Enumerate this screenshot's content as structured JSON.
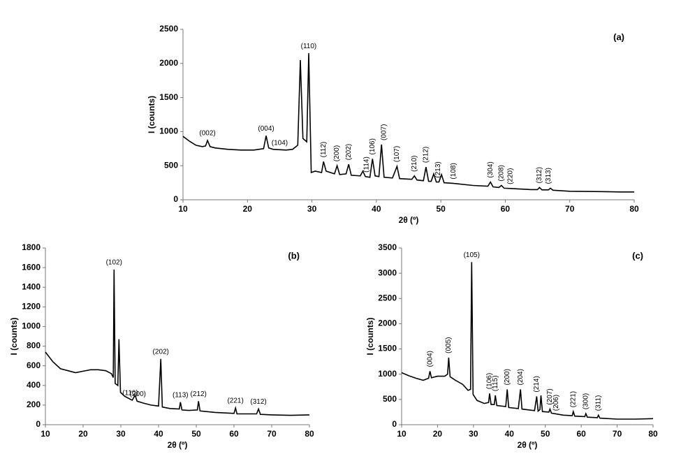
{
  "chart_data": [
    {
      "type": "line",
      "panel": "(a)",
      "x_label": "2θ (º)",
      "y_label": "I (counts)",
      "xlim": [
        10,
        80
      ],
      "xticks": [
        10,
        20,
        30,
        40,
        50,
        60,
        70,
        80
      ],
      "ylim": [
        0,
        2500
      ],
      "yticks": [
        0,
        500,
        1000,
        1500,
        2000,
        2500
      ],
      "color": "#000000",
      "x": [
        10,
        11,
        12,
        13,
        13.5,
        13.8,
        14.2,
        15,
        17,
        19,
        21,
        22.5,
        22.9,
        23.3,
        24,
        26,
        27,
        27.8,
        28.2,
        28.6,
        29.2,
        29.5,
        29.9,
        30.5,
        31.5,
        31.8,
        32.2,
        33.5,
        33.9,
        34.3,
        35.3,
        35.7,
        36.1,
        37.5,
        37.9,
        38.3,
        39,
        39.4,
        39.8,
        40.4,
        40.8,
        41.2,
        42.5,
        43.2,
        43.6,
        45.5,
        45.9,
        46.3,
        47.3,
        47.7,
        48.1,
        48.5,
        48.9,
        49.3,
        49.7,
        50.1,
        50.5,
        52,
        55,
        57.3,
        57.7,
        58.1,
        59,
        59.4,
        59.8,
        61,
        62,
        64,
        65,
        65.3,
        65.7,
        66.7,
        67,
        67.4,
        70,
        75,
        78,
        80
      ],
      "values": [
        930,
        860,
        800,
        780,
        790,
        870,
        780,
        760,
        740,
        730,
        730,
        750,
        940,
        760,
        740,
        730,
        740,
        800,
        2050,
        900,
        850,
        2150,
        400,
        420,
        400,
        560,
        420,
        380,
        500,
        370,
        380,
        520,
        360,
        350,
        420,
        340,
        330,
        600,
        350,
        340,
        810,
        330,
        320,
        490,
        310,
        300,
        350,
        290,
        280,
        480,
        270,
        270,
        380,
        260,
        260,
        370,
        250,
        240,
        210,
        200,
        260,
        190,
        180,
        210,
        170,
        165,
        160,
        150,
        150,
        180,
        145,
        145,
        170,
        140,
        125,
        120,
        115,
        115
      ],
      "annotations": [
        {
          "text": "(002)",
          "x": 13.8,
          "vertical": false
        },
        {
          "text": "(004)",
          "x": 22.9,
          "vertical": false
        },
        {
          "text": "(104)",
          "x": 25,
          "vertical": false
        },
        {
          "text": "(110)",
          "x": 29.5,
          "vertical": false
        },
        {
          "text": "(112)",
          "x": 31.8,
          "vertical": true
        },
        {
          "text": "(200)",
          "x": 33.9,
          "vertical": true
        },
        {
          "text": "(202)",
          "x": 35.7,
          "vertical": true
        },
        {
          "text": "(114)",
          "x": 38.5,
          "vertical": true
        },
        {
          "text": "(106)",
          "x": 39.4,
          "vertical": true
        },
        {
          "text": "(007)",
          "x": 41.2,
          "vertical": true
        },
        {
          "text": "(107)",
          "x": 43.2,
          "vertical": true
        },
        {
          "text": "(210)",
          "x": 45.9,
          "vertical": true
        },
        {
          "text": "(212)",
          "x": 47.7,
          "vertical": true
        },
        {
          "text": "(213)",
          "x": 49.6,
          "vertical": true
        },
        {
          "text": "(108)",
          "x": 52,
          "vertical": true
        },
        {
          "text": "(304)",
          "x": 57.7,
          "vertical": true
        },
        {
          "text": "(208)",
          "x": 59.4,
          "vertical": true
        },
        {
          "text": "(220)",
          "x": 60.8,
          "vertical": true
        },
        {
          "text": "(312)",
          "x": 65.3,
          "vertical": true
        },
        {
          "text": "(313)",
          "x": 66.7,
          "vertical": true
        }
      ]
    },
    {
      "type": "line",
      "panel": "(b)",
      "x_label": "2θ (º)",
      "y_label": "I (counts)",
      "xlim": [
        10,
        80
      ],
      "xticks": [
        10,
        20,
        30,
        40,
        50,
        60,
        70,
        80
      ],
      "ylim": [
        0,
        1800
      ],
      "yticks": [
        0,
        200,
        400,
        600,
        800,
        1000,
        1200,
        1400,
        1600,
        1800
      ],
      "color": "#000000",
      "x": [
        10,
        12,
        14,
        16,
        18,
        20,
        22,
        24,
        26,
        27.5,
        28,
        28.2,
        28.5,
        29.2,
        29.5,
        29.9,
        31,
        33,
        33.8,
        34.3,
        36,
        38,
        40,
        40.6,
        41,
        43,
        45.5,
        45.8,
        46.2,
        48,
        50.3,
        50.6,
        51,
        55,
        60,
        60.4,
        60.8,
        66,
        66.5,
        67,
        70,
        75,
        80
      ],
      "values": [
        740,
        640,
        570,
        550,
        530,
        545,
        560,
        560,
        550,
        520,
        480,
        1580,
        420,
        400,
        870,
        330,
        290,
        250,
        300,
        240,
        220,
        200,
        190,
        670,
        180,
        165,
        160,
        230,
        150,
        145,
        150,
        240,
        140,
        125,
        115,
        170,
        110,
        110,
        160,
        105,
        100,
        95,
        100
      ],
      "annotations": [
        {
          "text": "(102)",
          "x": 28.2,
          "vertical": false
        },
        {
          "text": "(110)",
          "x": 32.5,
          "vertical": false
        },
        {
          "text": "(200)",
          "x": 34.5,
          "vertical": false
        },
        {
          "text": "(202)",
          "x": 40.6,
          "vertical": false
        },
        {
          "text": "(113)",
          "x": 45.8,
          "vertical": false
        },
        {
          "text": "(212)",
          "x": 50.6,
          "vertical": false
        },
        {
          "text": "(221)",
          "x": 60.4,
          "vertical": false
        },
        {
          "text": "(312)",
          "x": 66.5,
          "vertical": false
        }
      ]
    },
    {
      "type": "line",
      "panel": "(c)",
      "x_label": "2θ (º)",
      "y_label": "I (counts)",
      "xlim": [
        10,
        80
      ],
      "xticks": [
        10,
        20,
        30,
        40,
        50,
        60,
        70,
        80
      ],
      "ylim": [
        0,
        3500
      ],
      "yticks": [
        0,
        500,
        1000,
        1500,
        2000,
        2500,
        3000,
        3500
      ],
      "color": "#000000",
      "x": [
        10,
        12,
        14,
        16,
        17.5,
        17.9,
        18.3,
        20,
        22,
        22.8,
        23.1,
        23.5,
        25,
        27,
        28.5,
        29.2,
        29.5,
        29.9,
        31,
        33,
        34.2,
        34.5,
        34.9,
        35.8,
        36.1,
        36.5,
        39,
        39.4,
        39.8,
        42.5,
        43.1,
        43.5,
        47,
        47.6,
        48,
        48.5,
        48.8,
        49.2,
        51,
        51.3,
        51.7,
        55,
        57.5,
        57.8,
        58.2,
        61,
        61.3,
        61.7,
        64.5,
        64.8,
        65.2,
        70,
        75,
        80
      ],
      "values": [
        1030,
        970,
        920,
        880,
        920,
        1060,
        930,
        960,
        960,
        1000,
        1330,
        950,
        880,
        800,
        680,
        700,
        3220,
        600,
        480,
        420,
        440,
        620,
        400,
        400,
        580,
        380,
        360,
        700,
        340,
        320,
        700,
        310,
        280,
        560,
        270,
        300,
        580,
        260,
        250,
        310,
        230,
        190,
        180,
        260,
        170,
        160,
        220,
        150,
        140,
        190,
        130,
        110,
        110,
        120
      ],
      "annotations": [
        {
          "text": "(004)",
          "x": 17.9,
          "vertical": true
        },
        {
          "text": "(005)",
          "x": 23.1,
          "vertical": true
        },
        {
          "text": "(105)",
          "x": 29.5,
          "vertical": false
        },
        {
          "text": "(106)",
          "x": 34.5,
          "vertical": true
        },
        {
          "text": "(115)",
          "x": 36.1,
          "vertical": true
        },
        {
          "text": "(200)",
          "x": 39.4,
          "vertical": true
        },
        {
          "text": "(204)",
          "x": 43.1,
          "vertical": true
        },
        {
          "text": "(214)",
          "x": 47.6,
          "vertical": true
        },
        {
          "text": "(206)",
          "x": 53,
          "vertical": true
        },
        {
          "text": "(207)",
          "x": 51.3,
          "vertical": true
        },
        {
          "text": "(221)",
          "x": 57.8,
          "vertical": true
        },
        {
          "text": "(300)",
          "x": 61.3,
          "vertical": true
        },
        {
          "text": "(311)",
          "x": 64.8,
          "vertical": true
        }
      ]
    }
  ]
}
